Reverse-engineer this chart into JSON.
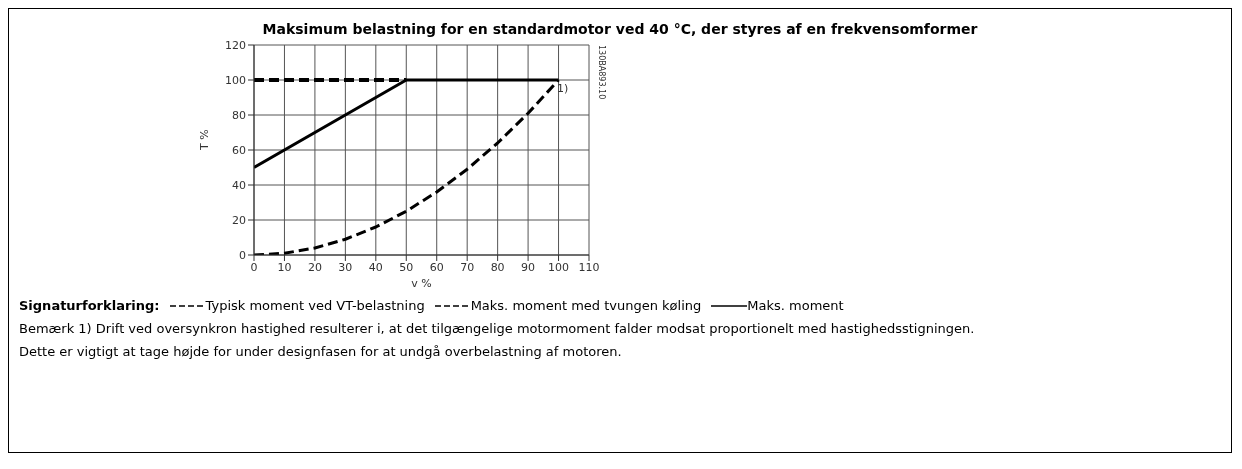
{
  "chart_data": {
    "type": "line",
    "title": "Maksimum belastning for en standardmotor ved 40 °C, der styres af en frekvensomformer",
    "xlabel": "v %",
    "ylabel": "T %",
    "xlim": [
      0,
      110
    ],
    "xticks": [
      0,
      10,
      20,
      30,
      40,
      50,
      60,
      70,
      80,
      90,
      100,
      110
    ],
    "ylim": [
      0,
      120
    ],
    "yticks": [
      0,
      20,
      40,
      60,
      80,
      100,
      120
    ],
    "grid": true,
    "legend": "bottom",
    "legend_title": "Signaturforklaring:",
    "marker": "none",
    "series": [
      {
        "name": "Typisk moment ved VT-belastning",
        "color": "#000000",
        "line_style": "dashed",
        "x": [
          0,
          10,
          20,
          30,
          40,
          50,
          60,
          70,
          80,
          90,
          100
        ],
        "values": [
          0,
          1,
          4,
          9,
          16,
          25,
          36,
          49,
          64,
          81,
          100
        ]
      },
      {
        "name": "Maks. moment med tvungen køling",
        "color": "#000000",
        "line_style": "dashed",
        "x": [
          0,
          50
        ],
        "values": [
          100,
          100
        ]
      },
      {
        "name": "Maks. moment",
        "color": "#000000",
        "line_style": "solid",
        "x": [
          0,
          50,
          100
        ],
        "values": [
          50,
          100,
          100
        ]
      }
    ],
    "annotations": [
      {
        "text": "1)",
        "x": 100,
        "y": 100
      },
      "130BA893.10",
      "Bemærk 1) Drift ved oversynkron hastighed resulterer i, at det tilgængelige motormoment falder modsat proportionelt med hastighedsstigningen.",
      "Dette er vigtigt at tage højde for under designfasen for at undgå overbelastning af motoren."
    ]
  }
}
